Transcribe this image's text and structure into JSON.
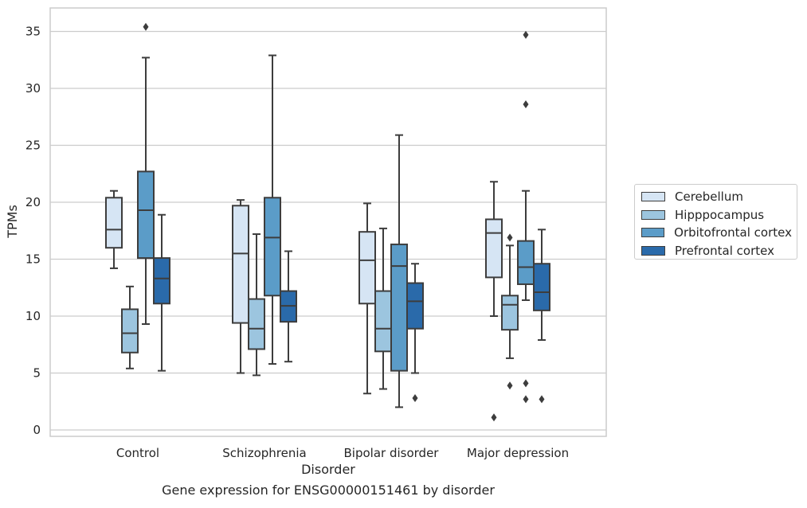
{
  "caption": "Gene expression for ENSG00000151461 by disorder",
  "chart_data": {
    "type": "box",
    "xlabel": "Disorder",
    "ylabel": "TPMs",
    "ylim": [
      -0.5,
      37
    ],
    "yticks": [
      0,
      5,
      10,
      15,
      20,
      25,
      30,
      35
    ],
    "grid": "horizontal",
    "legend_position": "right",
    "categories": [
      "Control",
      "Schizophrenia",
      "Bipolar disorder",
      "Major depression"
    ],
    "series": [
      {
        "name": "Cerebellum",
        "color": "#d6e5f4",
        "boxes": [
          {
            "whislo": 14.2,
            "q1": 16.0,
            "med": 17.6,
            "q3": 20.4,
            "whishi": 21.0,
            "fliers": []
          },
          {
            "whislo": 5.0,
            "q1": 9.4,
            "med": 15.5,
            "q3": 19.7,
            "whishi": 20.2,
            "fliers": []
          },
          {
            "whislo": 3.2,
            "q1": 11.1,
            "med": 14.9,
            "q3": 17.4,
            "whishi": 19.9,
            "fliers": []
          },
          {
            "whislo": 10.0,
            "q1": 13.4,
            "med": 17.3,
            "q3": 18.5,
            "whishi": 21.8,
            "fliers": [
              1.1
            ]
          }
        ]
      },
      {
        "name": "Hipppocampus",
        "color": "#9cc5df",
        "boxes": [
          {
            "whislo": 5.4,
            "q1": 6.8,
            "med": 8.5,
            "q3": 10.6,
            "whishi": 12.6,
            "fliers": []
          },
          {
            "whislo": 4.8,
            "q1": 7.1,
            "med": 8.9,
            "q3": 11.5,
            "whishi": 17.2,
            "fliers": []
          },
          {
            "whislo": 3.6,
            "q1": 6.9,
            "med": 8.9,
            "q3": 12.2,
            "whishi": 17.7,
            "fliers": []
          },
          {
            "whislo": 6.3,
            "q1": 8.8,
            "med": 11.0,
            "q3": 11.8,
            "whishi": 16.2,
            "fliers": [
              16.9,
              3.9
            ]
          }
        ]
      },
      {
        "name": "Orbitofrontal cortex",
        "color": "#5b9cc8",
        "boxes": [
          {
            "whislo": 9.3,
            "q1": 15.1,
            "med": 19.3,
            "q3": 22.7,
            "whishi": 32.7,
            "fliers": [
              35.4
            ]
          },
          {
            "whislo": 5.8,
            "q1": 11.8,
            "med": 16.9,
            "q3": 20.4,
            "whishi": 32.9,
            "fliers": []
          },
          {
            "whislo": 2.0,
            "q1": 5.2,
            "med": 14.4,
            "q3": 16.3,
            "whishi": 25.9,
            "fliers": []
          },
          {
            "whislo": 11.4,
            "q1": 12.8,
            "med": 14.3,
            "q3": 16.6,
            "whishi": 21.0,
            "fliers": [
              34.7,
              28.6,
              4.1,
              2.7
            ]
          }
        ]
      },
      {
        "name": "Prefrontal cortex",
        "color": "#2a6aaa",
        "boxes": [
          {
            "whislo": 5.2,
            "q1": 11.1,
            "med": 13.3,
            "q3": 15.1,
            "whishi": 18.9,
            "fliers": []
          },
          {
            "whislo": 6.0,
            "q1": 9.5,
            "med": 10.9,
            "q3": 12.2,
            "whishi": 15.7,
            "fliers": []
          },
          {
            "whislo": 5.0,
            "q1": 8.9,
            "med": 11.3,
            "q3": 12.9,
            "whishi": 14.6,
            "fliers": [
              2.8
            ]
          },
          {
            "whislo": 7.9,
            "q1": 10.5,
            "med": 12.1,
            "q3": 14.6,
            "whishi": 17.6,
            "fliers": [
              2.7
            ]
          }
        ]
      }
    ]
  }
}
